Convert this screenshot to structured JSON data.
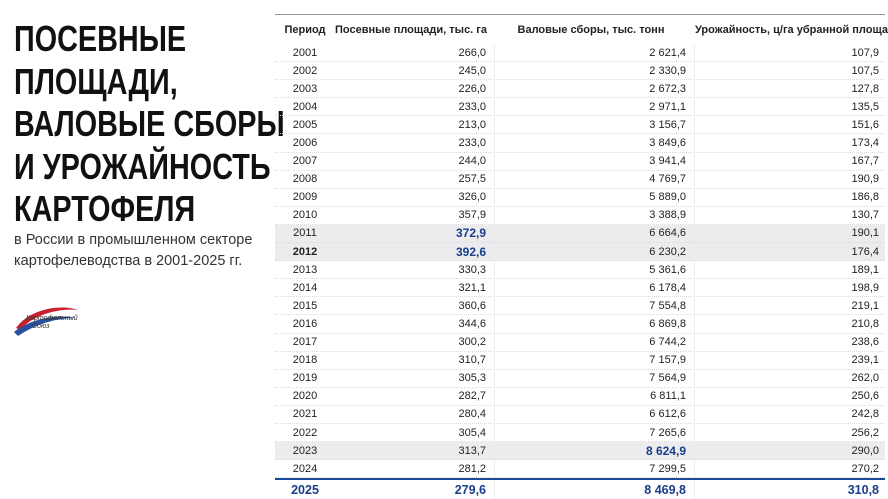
{
  "title_lines": [
    "ПОСЕВНЫЕ",
    "ПЛОЩАДИ,",
    "ВАЛОВЫЕ СБОРЫ",
    "И УРОЖАЙНОСТЬ",
    "КАРТОФЕЛЯ"
  ],
  "subtitle_lines": [
    "в России в промышленном секторе",
    "картофелеводства в 2001-2025 гг."
  ],
  "logo_lines": [
    "Картофельный",
    "Союз"
  ],
  "table": {
    "header": [
      "Период",
      "Посевные площади, тыс. га",
      "Валовые сборы, тыс. тонн",
      "Урожайность, ц/га убранной площади"
    ],
    "rows": [
      [
        "2001",
        "266,0",
        "2 621,4",
        "107,9"
      ],
      [
        "2002",
        "245,0",
        "2 330,9",
        "107,5"
      ],
      [
        "2003",
        "226,0",
        "2 672,3",
        "127,8"
      ],
      [
        "2004",
        "233,0",
        "2 971,1",
        "135,5"
      ],
      [
        "2005",
        "213,0",
        "3 156,7",
        "151,6"
      ],
      [
        "2006",
        "233,0",
        "3 849,6",
        "173,4"
      ],
      [
        "2007",
        "244,0",
        "3 941,4",
        "167,7"
      ],
      [
        "2008",
        "257,5",
        "4 769,7",
        "190,9"
      ],
      [
        "2009",
        "326,0",
        "5 889,0",
        "186,8"
      ],
      [
        "2010",
        "357,9",
        "3 388,9",
        "130,7"
      ],
      [
        "2011",
        "372,9",
        "6 664,6",
        "190,1"
      ],
      [
        "2012",
        "392,6",
        "6 230,2",
        "176,4"
      ],
      [
        "2013",
        "330,3",
        "5 361,6",
        "189,1"
      ],
      [
        "2014",
        "321,1",
        "6 178,4",
        "198,9"
      ],
      [
        "2015",
        "360,6",
        "7 554,8",
        "219,1"
      ],
      [
        "2016",
        "344,6",
        "6 869,8",
        "210,8"
      ],
      [
        "2017",
        "300,2",
        "6 744,2",
        "238,6"
      ],
      [
        "2018",
        "310,7",
        "7 157,9",
        "239,1"
      ],
      [
        "2019",
        "305,3",
        "7 564,9",
        "262,0"
      ],
      [
        "2020",
        "282,7",
        "6 811,1",
        "250,6"
      ],
      [
        "2021",
        "280,4",
        "6 612,6",
        "242,8"
      ],
      [
        "2022",
        "305,4",
        "7 265,6",
        "256,2"
      ],
      [
        "2023",
        "313,7",
        "8 624,9",
        "290,0"
      ],
      [
        "2024",
        "281,2",
        "7 299,5",
        "270,2"
      ],
      [
        "2025",
        "279,6",
        "8 469,8",
        "310,8"
      ]
    ]
  }
}
